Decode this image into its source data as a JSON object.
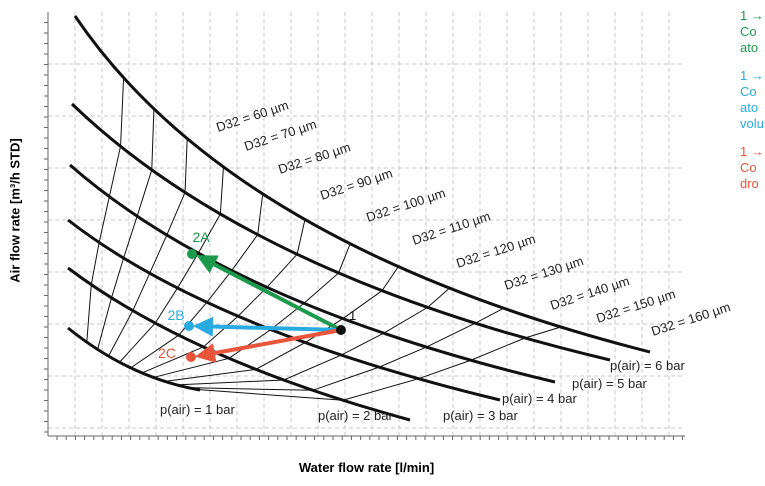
{
  "chart_data": {
    "type": "line",
    "title": "",
    "xlabel": "Water flow rate [l/min]",
    "ylabel": "Air flow rate [m³/h STD]",
    "grid": true,
    "pressure_curves": [
      {
        "label": "p(air) = 1 bar",
        "color": "#111111"
      },
      {
        "label": "p(air) = 2 bar",
        "color": "#111111"
      },
      {
        "label": "p(air) = 3 bar",
        "color": "#111111"
      },
      {
        "label": "p(air) = 4 bar",
        "color": "#111111"
      },
      {
        "label": "p(air) = 5 bar",
        "color": "#111111"
      },
      {
        "label": "p(air) = 6 bar",
        "color": "#111111"
      }
    ],
    "droplet_size_lines": [
      "D32 = 60 µm",
      "D32 = 70 µm",
      "D32 = 80 µm",
      "D32 = 90 µm",
      "D32 = 100 µm",
      "D32 = 110 µm",
      "D32 = 120 µm",
      "D32 = 130 µm",
      "D32 = 140 µm",
      "D32 = 150 µm",
      "D32 = 160 µm"
    ],
    "points": [
      {
        "label": "1",
        "color": "#111111"
      },
      {
        "label": "2A",
        "color": "#1a9a4a"
      },
      {
        "label": "2B",
        "color": "#29abe2"
      },
      {
        "label": "2C",
        "color": "#e8553a"
      }
    ],
    "arrows": [
      {
        "from": "1",
        "to": "2A",
        "color": "#1a9a4a"
      },
      {
        "from": "1",
        "to": "2B",
        "color": "#29abe2"
      },
      {
        "from": "1",
        "to": "2C",
        "color": "#e8553a"
      }
    ]
  },
  "legend": [
    {
      "color": "#1a9a4a",
      "lines": [
        "1 →",
        "Co",
        "ato"
      ]
    },
    {
      "color": "#29abe2",
      "lines": [
        "1 →",
        "Co",
        "ato",
        "volu"
      ]
    },
    {
      "color": "#e8553a",
      "lines": [
        "1 →",
        "Co",
        "dro"
      ]
    }
  ]
}
